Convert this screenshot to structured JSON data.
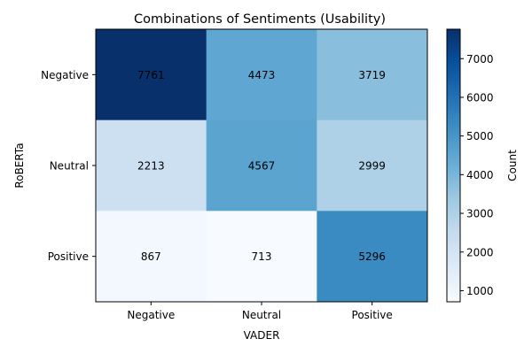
{
  "chart_data": {
    "type": "heatmap",
    "title": "Combinations of Sentiments (Usability)",
    "xlabel": "VADER",
    "ylabel": "RoBERTa",
    "x_categories": [
      "Negative",
      "Neutral",
      "Positive"
    ],
    "y_categories": [
      "Negative",
      "Neutral",
      "Positive"
    ],
    "values": [
      [
        7761,
        4473,
        3719
      ],
      [
        2213,
        4567,
        2999
      ],
      [
        867,
        713,
        5296
      ]
    ],
    "colorbar": {
      "label": "Count",
      "ticks": [
        1000,
        2000,
        3000,
        4000,
        5000,
        6000,
        7000
      ],
      "range": [
        713,
        7761
      ]
    },
    "colormap": "Blues",
    "grid": false
  }
}
